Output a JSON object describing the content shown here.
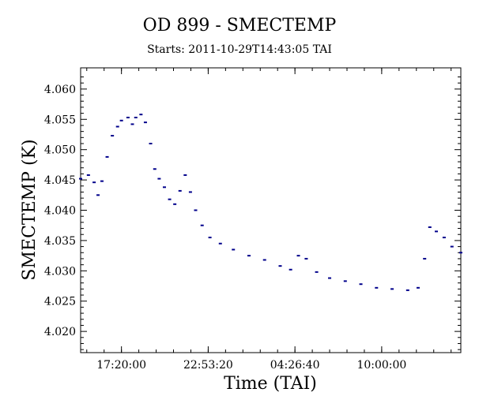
{
  "chart_data": {
    "type": "scatter",
    "title": "OD 899 - SMECTEMP",
    "subtitle": "Starts: 2011-10-29T14:43:05 TAI",
    "xlabel": "Time (TAI)",
    "ylabel": "SMECTEMP (K)",
    "x_tick_labels": [
      "17:20:00",
      "22:53:20",
      "04:26:40",
      "10:00:00"
    ],
    "y_ticks": [
      4.02,
      4.025,
      4.03,
      4.035,
      4.04,
      4.045,
      4.05,
      4.055,
      4.06
    ],
    "y_tick_labels": [
      "4.020",
      "4.025",
      "4.030",
      "4.035",
      "4.040",
      "4.045",
      "4.050",
      "4.055",
      "4.060"
    ],
    "ylim": [
      4.0165,
      4.0635
    ],
    "xlim": [
      "2011-10-29T14:43:05",
      "2011-10-30T15:04:05"
    ],
    "x_ticks": [
      "2011-10-29T17:20:00",
      "2011-10-29T22:53:20",
      "2011-10-30T04:26:40",
      "2011-10-30T10:00:00"
    ],
    "grid": false,
    "series": [
      {
        "color": "#00008b",
        "x": [
          "2011-10-29T14:43:05",
          "2011-10-29T15:13:00",
          "2011-10-29T15:35:00",
          "2011-10-29T15:50:00",
          "2011-10-29T16:05:00",
          "2011-10-29T16:25:00",
          "2011-10-29T16:45:00",
          "2011-10-29T17:05:00",
          "2011-10-29T17:20:00",
          "2011-10-29T17:45:00",
          "2011-10-29T18:02:00",
          "2011-10-29T18:15:00",
          "2011-10-29T18:35:00",
          "2011-10-29T18:52:00",
          "2011-10-29T19:12:00",
          "2011-10-29T19:28:00",
          "2011-10-29T19:45:00",
          "2011-10-29T20:05:00",
          "2011-10-29T20:25:00",
          "2011-10-29T20:45:00",
          "2011-10-29T21:05:00",
          "2011-10-29T21:25:00",
          "2011-10-29T21:45:00",
          "2011-10-29T22:05:00",
          "2011-10-29T22:30:00",
          "2011-10-29T23:00:00",
          "2011-10-29T23:40:00",
          "2011-10-30T00:30:00",
          "2011-10-30T01:30:00",
          "2011-10-30T02:30:00",
          "2011-10-30T03:30:00",
          "2011-10-30T04:10:00",
          "2011-10-30T04:40:00",
          "2011-10-30T05:10:00",
          "2011-10-30T05:50:00",
          "2011-10-30T06:40:00",
          "2011-10-30T07:40:00",
          "2011-10-30T08:40:00",
          "2011-10-30T09:40:00",
          "2011-10-30T10:40:00",
          "2011-10-30T11:40:00",
          "2011-10-30T12:20:00",
          "2011-10-30T12:45:00",
          "2011-10-30T13:05:00",
          "2011-10-30T13:30:00",
          "2011-10-30T14:00:00",
          "2011-10-30T14:30:00",
          "2011-10-30T15:04:05"
        ],
        "y": [
          4.0452,
          4.0458,
          4.0446,
          4.0425,
          4.0448,
          4.0488,
          4.0523,
          4.0538,
          4.0548,
          4.0553,
          4.0542,
          4.0553,
          4.0558,
          4.0545,
          4.051,
          4.0468,
          4.0452,
          4.0438,
          4.0418,
          4.041,
          4.0432,
          4.0458,
          4.043,
          4.04,
          4.0375,
          4.0355,
          4.0345,
          4.0335,
          4.0325,
          4.0318,
          4.0308,
          4.0302,
          4.0325,
          4.032,
          4.0298,
          4.0288,
          4.0283,
          4.0278,
          4.0272,
          4.027,
          4.0268,
          4.0272,
          4.032,
          4.0372,
          4.0365,
          4.0355,
          4.034,
          4.033
        ]
      }
    ]
  }
}
